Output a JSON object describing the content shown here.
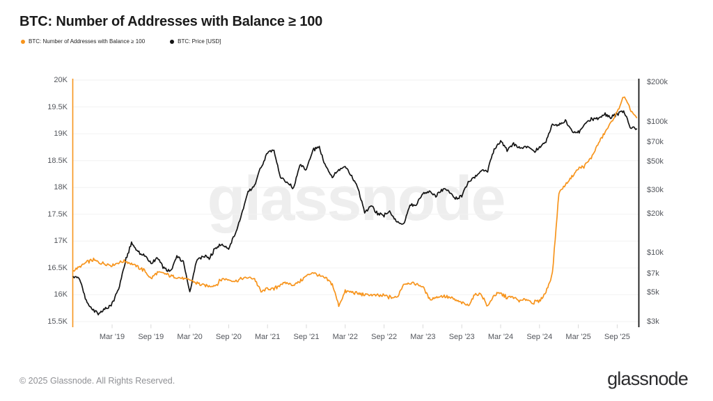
{
  "header": {
    "title": "BTC: Number of Addresses with Balance ≥ 100"
  },
  "legend": [
    {
      "id": "addresses",
      "label": "BTC: Number of Addresses with Balance ≥ 100",
      "color": "#f7941c"
    },
    {
      "id": "price",
      "label": "BTC: Price [USD]",
      "color": "#141414"
    }
  ],
  "watermark": "glassnode",
  "footer": {
    "copyright": "© 2025 Glassnode. All Rights Reserved.",
    "logo_text": "glassnode"
  },
  "chart_data": {
    "type": "line",
    "title": "BTC: Number of Addresses with Balance ≥ 100",
    "grid": "horizontal-only",
    "legend_position": "top-left",
    "months_start": "2018-09",
    "x_ticks": [
      {
        "label": "Mar '19",
        "month": "2019-03"
      },
      {
        "label": "Sep '19",
        "month": "2019-09"
      },
      {
        "label": "Mar '20",
        "month": "2020-03"
      },
      {
        "label": "Sep '20",
        "month": "2020-09"
      },
      {
        "label": "Mar '21",
        "month": "2021-03"
      },
      {
        "label": "Sep '21",
        "month": "2021-09"
      },
      {
        "label": "Mar '22",
        "month": "2022-03"
      },
      {
        "label": "Sep '22",
        "month": "2022-09"
      },
      {
        "label": "Mar '23",
        "month": "2023-03"
      },
      {
        "label": "Sep '23",
        "month": "2023-09"
      },
      {
        "label": "Mar '24",
        "month": "2024-03"
      },
      {
        "label": "Sep '24",
        "month": "2024-09"
      },
      {
        "label": "Mar '25",
        "month": "2025-03"
      },
      {
        "label": "Sep '25",
        "month": "2025-09"
      }
    ],
    "y_left": {
      "scale": "linear",
      "unit": "addresses",
      "tick_labels": [
        "20K",
        "19.5K",
        "19K",
        "18.5K",
        "18K",
        "17.5K",
        "17K",
        "16.5K",
        "16K",
        "15.5K"
      ],
      "tick_values": [
        20000,
        19500,
        19000,
        18500,
        18000,
        17500,
        17000,
        16500,
        16000,
        15500
      ],
      "range": [
        15450,
        20000
      ]
    },
    "y_right": {
      "scale": "log",
      "unit": "USD",
      "tick_labels": [
        "$200k",
        "$100k",
        "$70k",
        "$50k",
        "$30k",
        "$20k",
        "$10k",
        "$7k",
        "$5k",
        "$3k"
      ],
      "tick_values": [
        200000,
        100000,
        70000,
        50000,
        30000,
        20000,
        10000,
        7000,
        5000,
        3000
      ],
      "range": [
        3000,
        200000
      ]
    },
    "series": [
      {
        "name": "BTC: Number of Addresses with Balance ≥ 100",
        "color": "#f7941c",
        "axis": "left",
        "unit": "addresses",
        "monthly_values": [
          16450,
          16520,
          16600,
          16650,
          16600,
          16580,
          16550,
          16600,
          16630,
          16580,
          16520,
          16450,
          16300,
          16420,
          16400,
          16350,
          16330,
          16300,
          16280,
          16220,
          16180,
          16160,
          16180,
          16300,
          16280,
          16250,
          16300,
          16320,
          16300,
          16050,
          16120,
          16100,
          16200,
          16220,
          16180,
          16250,
          16350,
          16420,
          16350,
          16300,
          16200,
          15800,
          16060,
          16050,
          16020,
          16000,
          16000,
          15980,
          15980,
          15950,
          15950,
          16200,
          16220,
          16200,
          16150,
          15920,
          15950,
          15980,
          15950,
          15900,
          15850,
          15800,
          16000,
          16020,
          15780,
          16000,
          16020,
          15950,
          15950,
          15880,
          15920,
          15850,
          15880,
          16050,
          16400,
          17900,
          18050,
          18200,
          18350,
          18400,
          18550,
          18800,
          19000,
          19200,
          19400,
          19700,
          19450,
          19300
        ]
      },
      {
        "name": "BTC: Price [USD]",
        "color": "#141414",
        "axis": "right",
        "unit": "USD",
        "monthly_values": [
          6600,
          6400,
          4300,
          3700,
          3450,
          3800,
          4100,
          5300,
          8500,
          12000,
          10100,
          9600,
          8300,
          9200,
          7600,
          7200,
          9400,
          8600,
          5000,
          8600,
          9500,
          9100,
          11000,
          11700,
          10800,
          13800,
          19700,
          29000,
          33000,
          45000,
          58000,
          61000,
          37000,
          35000,
          31000,
          47000,
          43000,
          61000,
          63000,
          46000,
          38000,
          43000,
          45500,
          38000,
          31000,
          20000,
          23000,
          20000,
          19400,
          20500,
          17200,
          16500,
          23100,
          23500,
          28500,
          29200,
          27200,
          30500,
          29200,
          26000,
          27000,
          34700,
          37700,
          42300,
          42600,
          61000,
          71000,
          60600,
          67500,
          62700,
          64600,
          59000,
          63300,
          70200,
          96400,
          93400,
          102000,
          84400,
          82500,
          94200,
          104600,
          107100,
          115800,
          108200,
          114000,
          121000,
          91000,
          88000
        ]
      }
    ]
  }
}
